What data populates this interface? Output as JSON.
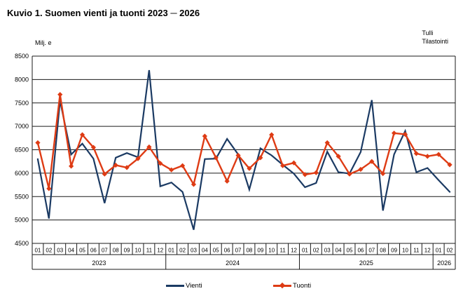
{
  "title": "Kuvio 1. Suomen vienti ja tuonti 2023 ─ 2026",
  "unit_label": "Milj. e",
  "source_label_line1": "Tulli",
  "source_label_line2": "Tilastointi",
  "legend": {
    "vienti_label": "Vienti",
    "tuonti_label": "Tuonti"
  },
  "colors": {
    "vienti": "#1B3A63",
    "tuonti": "#DE3B14",
    "grid": "#1a1a1a",
    "text": "#000000"
  },
  "chart_data": {
    "type": "line",
    "title": "Kuvio 1. Suomen vienti ja tuonti 2023 ─ 2026",
    "ylabel": "Milj. e",
    "ylim": [
      4500,
      8500
    ],
    "y_tick_step": 500,
    "y_ticks": [
      8500,
      8000,
      7500,
      7000,
      6500,
      6000,
      5500,
      5000,
      4500
    ],
    "grid": true,
    "legend_position": "bottom",
    "months": [
      "01",
      "02",
      "03",
      "04",
      "05",
      "06",
      "07",
      "08",
      "09",
      "10",
      "11",
      "12",
      "01",
      "02",
      "03",
      "04",
      "05",
      "06",
      "07",
      "08",
      "09",
      "10",
      "11",
      "12",
      "01",
      "02",
      "03",
      "04",
      "05",
      "06",
      "07",
      "08",
      "09",
      "10",
      "11",
      "12",
      "01",
      "02"
    ],
    "years": [
      {
        "label": "2023",
        "months": 12
      },
      {
        "label": "2024",
        "months": 12
      },
      {
        "label": "2025",
        "months": 12
      },
      {
        "label": "2026",
        "months": 2
      }
    ],
    "series": [
      {
        "name": "Vienti",
        "color": "#1B3A63",
        "marker": "none",
        "values": [
          6300,
          5030,
          7550,
          6400,
          6630,
          6310,
          5360,
          6330,
          6430,
          6340,
          8200,
          5720,
          5800,
          5600,
          4790,
          6300,
          6310,
          6730,
          6400,
          5650,
          6530,
          6380,
          6180,
          5990,
          5700,
          5790,
          6460,
          6020,
          5990,
          6450,
          7560,
          5200,
          6400,
          6900,
          6020,
          6110,
          5850,
          5600
        ]
      },
      {
        "name": "Tuonti",
        "color": "#DE3B14",
        "marker": "diamond",
        "values": [
          6650,
          5670,
          7680,
          6150,
          6820,
          6550,
          5980,
          6170,
          6120,
          6310,
          6560,
          6210,
          6070,
          6160,
          5760,
          6790,
          6330,
          5830,
          6380,
          6100,
          6330,
          6820,
          6160,
          6220,
          5970,
          6010,
          6650,
          6360,
          5980,
          6080,
          6250,
          5990,
          6855,
          6830,
          6420,
          6360,
          6400,
          6180
        ]
      }
    ]
  }
}
